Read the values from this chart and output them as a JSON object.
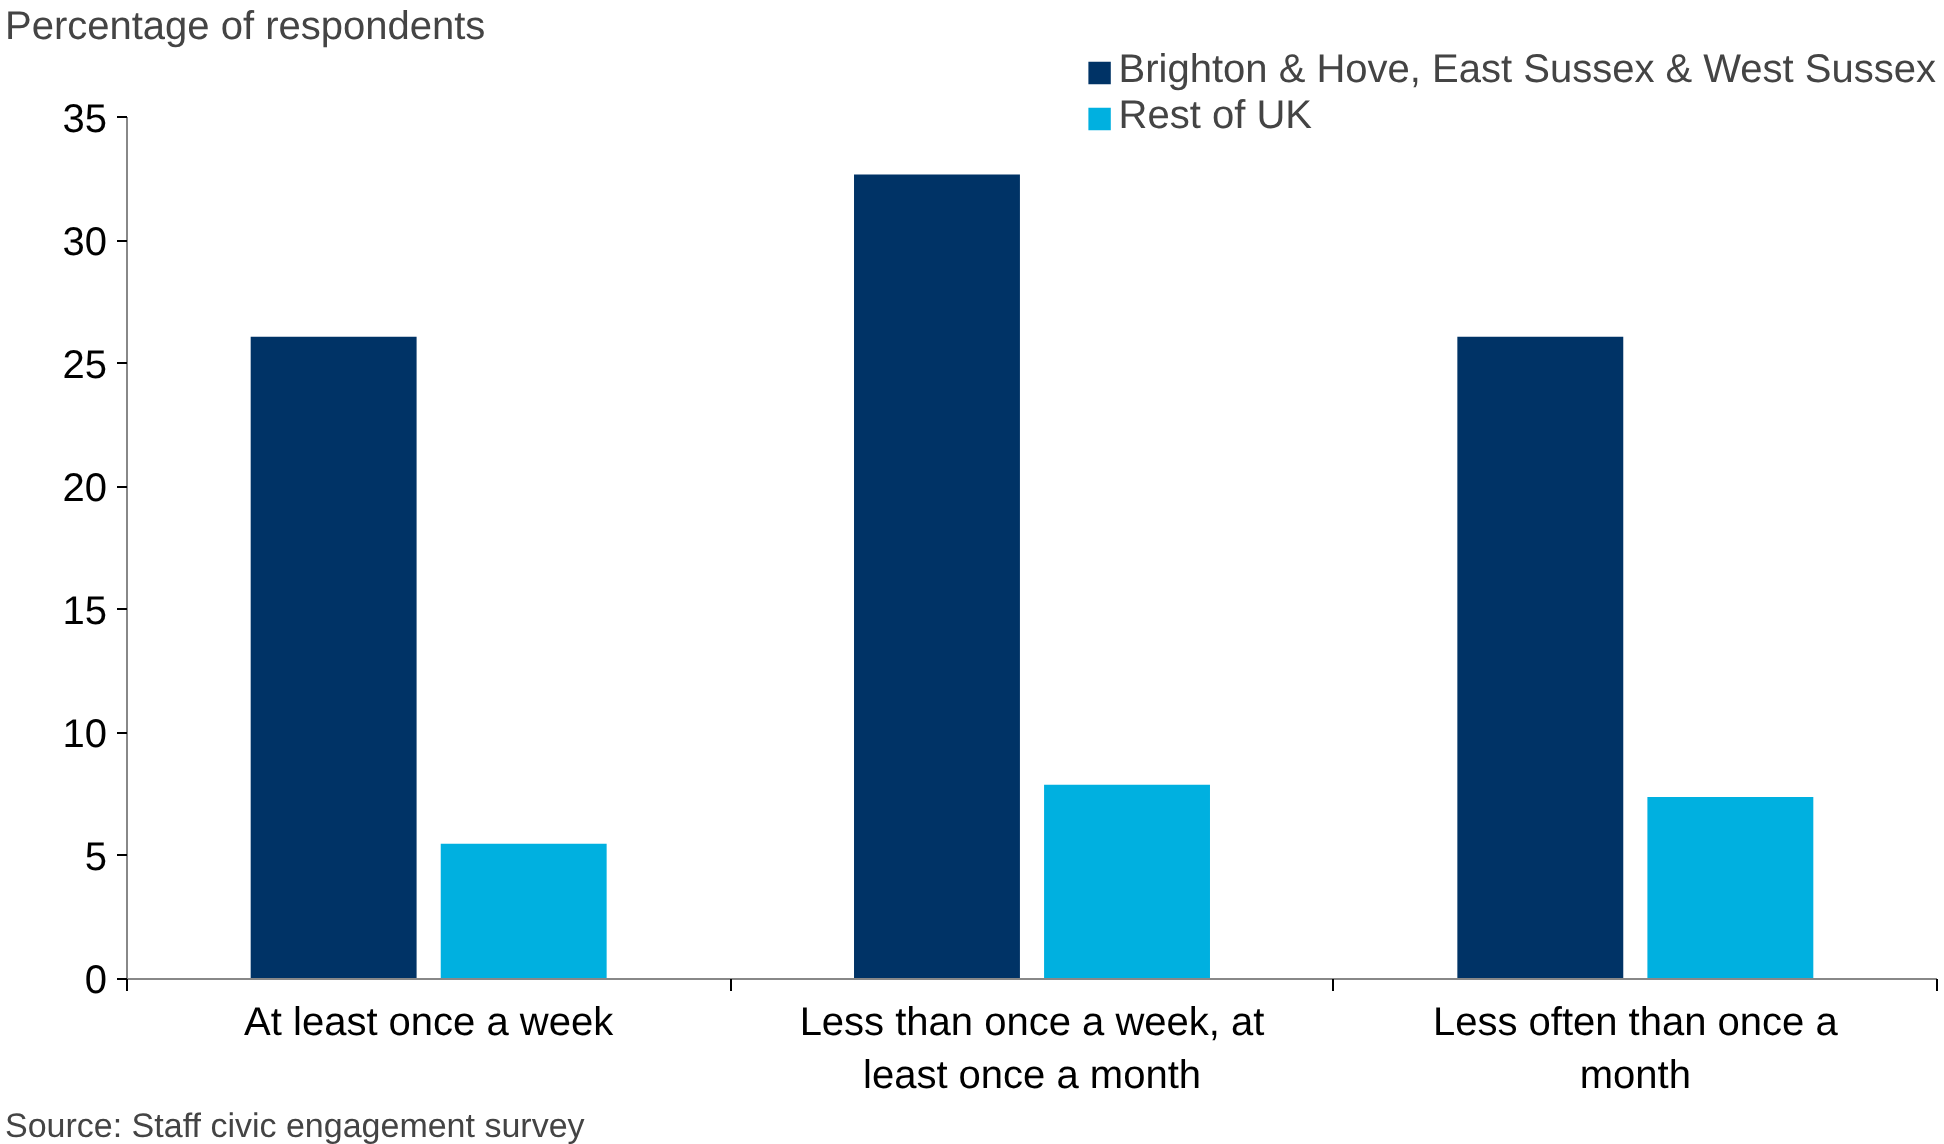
{
  "chart_data": {
    "type": "bar",
    "ylabel": "Percentage of respondents",
    "categories": [
      "At least once a week",
      "Less than once a week, at least once a month",
      "Less often than once a month"
    ],
    "series": [
      {
        "name": "Brighton & Hove, East Sussex & West Sussex",
        "color": "#003366",
        "values": [
          26.1,
          32.7,
          26.1
        ]
      },
      {
        "name": "Rest of UK",
        "color": "#00b0e0",
        "values": [
          5.5,
          7.9,
          7.4
        ]
      }
    ],
    "ylim": [
      0,
      35
    ],
    "yticks": [
      0,
      5,
      10,
      15,
      20,
      25,
      30,
      35
    ],
    "grid": false,
    "legend": "top right",
    "annotations": [
      "Source: Staff civic engagement survey"
    ]
  }
}
